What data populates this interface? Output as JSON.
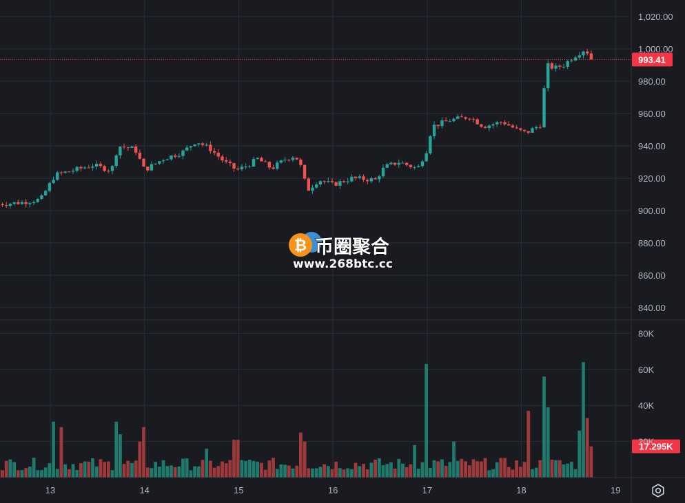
{
  "chart_data": [
    {
      "type": "candlestick",
      "x_unit": "day",
      "x_ticks": [
        "13",
        "14",
        "15",
        "16",
        "17",
        "18",
        "19"
      ],
      "y_ticks": [
        "840.00",
        "860.00",
        "880.00",
        "900.00",
        "920.00",
        "940.00",
        "960.00",
        "980.00",
        "1,000.00",
        "1,020.00"
      ],
      "ylim": [
        832,
        1026
      ],
      "grid": true,
      "last_price": 993.41,
      "last_price_label": "993.41",
      "anchors": [
        [
          12.45,
          904
        ],
        [
          12.7,
          905
        ],
        [
          12.9,
          907
        ],
        [
          13.05,
          922
        ],
        [
          13.25,
          925
        ],
        [
          13.45,
          928
        ],
        [
          13.65,
          925
        ],
        [
          13.72,
          940
        ],
        [
          13.9,
          938
        ],
        [
          14.0,
          925
        ],
        [
          14.2,
          932
        ],
        [
          14.4,
          936
        ],
        [
          14.55,
          943
        ],
        [
          14.7,
          938
        ],
        [
          14.85,
          930
        ],
        [
          14.98,
          925
        ],
        [
          15.1,
          928
        ],
        [
          15.2,
          932
        ],
        [
          15.35,
          926
        ],
        [
          15.5,
          932
        ],
        [
          15.6,
          934
        ],
        [
          15.68,
          925
        ],
        [
          15.72,
          912
        ],
        [
          15.85,
          919
        ],
        [
          16.0,
          916
        ],
        [
          16.2,
          920
        ],
        [
          16.45,
          919
        ],
        [
          16.55,
          927
        ],
        [
          16.7,
          930
        ],
        [
          16.9,
          926
        ],
        [
          17.0,
          938
        ],
        [
          17.05,
          952
        ],
        [
          17.25,
          956
        ],
        [
          17.45,
          958
        ],
        [
          17.6,
          952
        ],
        [
          17.8,
          955
        ],
        [
          17.95,
          950
        ],
        [
          18.05,
          948
        ],
        [
          18.2,
          953
        ],
        [
          18.27,
          990
        ],
        [
          18.35,
          988
        ],
        [
          18.45,
          990
        ],
        [
          18.55,
          995
        ],
        [
          18.68,
          1000
        ],
        [
          18.75,
          993
        ]
      ]
    },
    {
      "type": "bar",
      "name": "volume",
      "y_unit": "K",
      "y_ticks": [
        "20K",
        "40K",
        "60K",
        "80K"
      ],
      "ylim": [
        0,
        80
      ],
      "last_value_label": "17.295K",
      "spikes": [
        [
          13.05,
          31
        ],
        [
          13.1,
          28
        ],
        [
          13.7,
          31
        ],
        [
          13.75,
          24
        ],
        [
          13.97,
          20
        ],
        [
          14.0,
          28
        ],
        [
          14.65,
          16
        ],
        [
          14.97,
          21
        ],
        [
          15.67,
          25
        ],
        [
          15.7,
          20
        ],
        [
          17.0,
          63
        ],
        [
          16.88,
          18
        ],
        [
          17.3,
          20
        ],
        [
          18.07,
          37
        ],
        [
          18.25,
          56
        ],
        [
          18.3,
          39
        ],
        [
          18.6,
          26
        ],
        [
          18.67,
          64
        ],
        [
          18.72,
          33
        ],
        [
          18.75,
          17.3
        ]
      ]
    }
  ],
  "watermark": {
    "title": "币圈聚合",
    "url": "www.268btc.cc",
    "logo_icon": "bitcoin-icon"
  },
  "colors": {
    "background": "#1a1b20",
    "grid": "#2a2d36",
    "up": "#26a69a",
    "down": "#ef5350",
    "up_volume": "#1f7a6e",
    "down_volume": "#9c3a3c",
    "price_tag": "#f23645",
    "axis_text": "#b2b5be"
  },
  "settings_icon": "settings-gear-icon"
}
